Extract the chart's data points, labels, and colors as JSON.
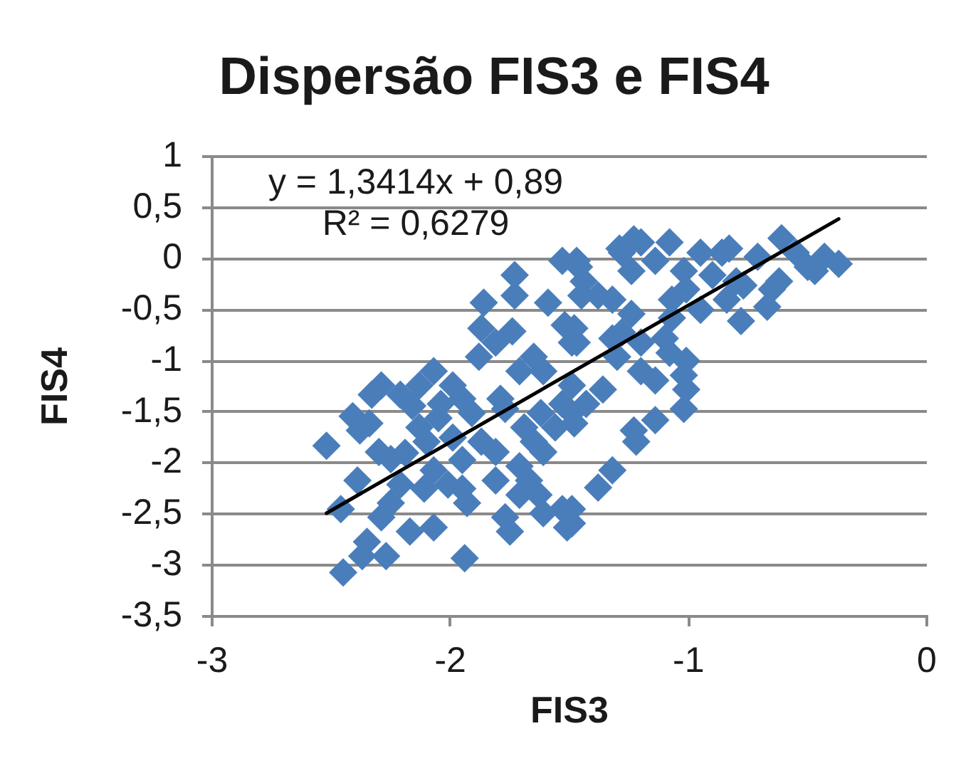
{
  "chart_data": {
    "type": "scatter",
    "title": "Dispersão FIS3 e FIS4",
    "xlabel": "FIS3",
    "ylabel": "FIS4",
    "annotations": [
      "y = 1,3414x + 0,89",
      "R² = 0,6279"
    ],
    "series": [
      {
        "type": "scatter",
        "color": "#4a7ebb",
        "x": [
          -2.52,
          -2.45,
          -2.46,
          -2.41,
          -2.34,
          -2.38,
          -2.3,
          -2.25,
          -2.39,
          -2.35,
          -2.27,
          -2.37,
          -2.13,
          -2.05,
          -1.99,
          -1.91,
          -1.87,
          -1.81,
          -1.95,
          -2.07,
          -2.11,
          -2.21,
          -2.25,
          -2.29,
          -2.17,
          -2.07,
          -1.95,
          -1.93,
          -1.94,
          -2.01,
          -1.81,
          -1.71,
          -1.67,
          -1.63,
          -1.71,
          -1.77,
          -1.75,
          -1.61,
          -1.53,
          -1.51,
          -1.69,
          -1.65,
          -1.61,
          -1.77,
          -1.49,
          -1.43,
          -1.73,
          -1.73,
          -1.86,
          -1.59,
          -1.53,
          -1.47,
          -1.45,
          -1.87,
          -1.74,
          -1.81,
          -1.88,
          -1.65,
          -1.52,
          -1.49,
          -1.71,
          -1.61,
          -2.07,
          -2.13,
          -2.29,
          -2.33,
          -2.21,
          -1.99,
          -1.95,
          -1.79,
          -1.49,
          -1.53,
          -1.46,
          -1.28,
          -1.2,
          -1.08,
          -1.24,
          -1.14,
          -1.02,
          -0.95,
          -0.86,
          -0.9,
          -1.01,
          -1.07,
          -1.07,
          -0.95,
          -0.84,
          -0.8,
          -0.77,
          -0.71,
          -0.62,
          -0.61,
          -0.55,
          -0.5,
          -0.43,
          -0.37,
          -0.47,
          -1.44,
          -1.38,
          -1.32,
          -1.24,
          -1.28,
          -1.32,
          -1.1,
          -1.2,
          -1.08,
          -1.01,
          -1.02,
          -1.3,
          -1.2,
          -1.14,
          -1.36,
          -1.48,
          -1.47,
          -0.65,
          -1.01,
          -1.48,
          -1.02,
          -1.14,
          -1.23,
          -1.22,
          -1.32,
          -1.38,
          -1.49,
          -1.49,
          -1.23,
          -1.29,
          -0.83,
          -0.78,
          -0.67,
          -2.16,
          -2.04,
          -2.19,
          -2.1,
          -1.56,
          -1.62
        ],
        "values": [
          -1.83,
          -3.07,
          -2.45,
          -1.54,
          -1.61,
          -1.68,
          -1.89,
          -1.96,
          -2.17,
          -2.77,
          -2.91,
          -2.91,
          -1.65,
          -1.56,
          -1.75,
          -1.51,
          -1.79,
          -1.89,
          -1.97,
          -2.07,
          -2.25,
          -2.21,
          -2.39,
          -2.53,
          -2.67,
          -2.63,
          -2.25,
          -2.39,
          -2.93,
          -2.21,
          -2.17,
          -2.03,
          -2.17,
          -2.31,
          -2.31,
          -2.53,
          -2.67,
          -2.49,
          -2.45,
          -2.63,
          -1.65,
          -1.79,
          -1.89,
          -1.47,
          -1.51,
          -1.42,
          -0.16,
          -0.36,
          -0.43,
          -0.43,
          -0.02,
          -0.02,
          -0.36,
          -0.68,
          -0.71,
          -0.82,
          -0.96,
          -0.96,
          -0.65,
          -0.82,
          -1.1,
          -1.1,
          -1.1,
          -1.24,
          -1.24,
          -1.33,
          -1.33,
          -1.24,
          -1.37,
          -1.37,
          -1.24,
          -1.42,
          -0.08,
          0.06,
          0.16,
          0.16,
          -0.12,
          -0.02,
          -0.12,
          0.06,
          0.06,
          -0.16,
          -0.3,
          -0.4,
          -0.58,
          -0.5,
          -0.4,
          -0.22,
          -0.26,
          0.02,
          -0.22,
          0.2,
          0.06,
          -0.08,
          0.02,
          -0.05,
          -0.12,
          -0.22,
          -0.36,
          -0.4,
          -0.54,
          -0.72,
          -0.78,
          -0.78,
          -0.82,
          -0.92,
          -1.0,
          -1.14,
          -0.96,
          -1.1,
          -1.19,
          -1.28,
          -0.68,
          -0.82,
          -0.3,
          -1.28,
          -1.61,
          -1.47,
          -1.58,
          -1.68,
          -1.79,
          -2.07,
          -2.24,
          -2.45,
          -2.59,
          0.19,
          0.1,
          0.1,
          -0.61,
          -0.47,
          -1.44,
          -1.42,
          -1.9,
          -1.79,
          -1.65,
          -1.51
        ]
      },
      {
        "type": "line",
        "color": "#000000",
        "marker": "none",
        "x": [
          -2.52,
          -0.37
        ],
        "values": [
          -2.49,
          0.39
        ]
      }
    ],
    "xlim": [
      -3,
      0
    ],
    "xticks": [
      -3,
      -2,
      -1,
      0
    ],
    "ylim": [
      -3.5,
      1
    ],
    "yticks": [
      1,
      {
        "value": 0.5,
        "label": "0,5"
      },
      0,
      {
        "value": -0.5,
        "label": "-0,5"
      },
      -1,
      {
        "value": -1.5,
        "label": "-1,5"
      },
      -2,
      {
        "value": -2.5,
        "label": "-2,5"
      },
      -3,
      {
        "value": -3.5,
        "label": "-3,5"
      }
    ],
    "grid": "y",
    "marker": "diamond"
  }
}
